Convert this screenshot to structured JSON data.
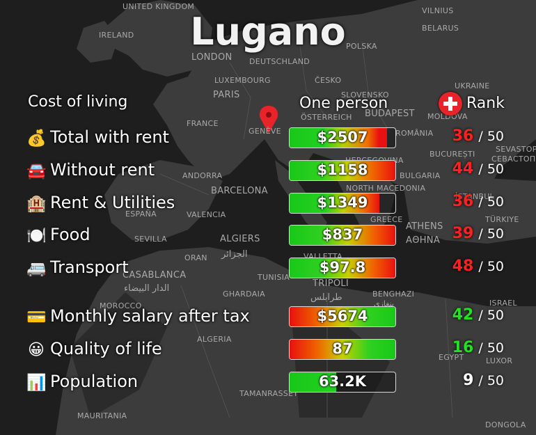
{
  "title": "Lugano",
  "headers": {
    "category": "Cost of living",
    "value": "One person",
    "rank": "Rank"
  },
  "map_labels": [
    "UNITED KINGDOM",
    "IRELAND",
    "LONDON",
    "DEUTSCHLAND",
    "POLSKA",
    "BELARUS",
    "VILNIUS",
    "LUXEMBOURG",
    "ČESKO",
    "PARIS",
    "SLOVENSKO",
    "UKRAINE",
    "ÖSTERREICH",
    "BUDAPEST",
    "MOLDOVA",
    "FRANCE",
    "GENÈVE",
    "ROMÂNIA",
    "BUCUREȘTI",
    "SEVASTOPOL",
    "СЕВАСТОПОЛЬ",
    "ANDORRA",
    "BULGARIA",
    "HERCEGOVINA",
    "BARCELONA",
    "NORTH MACEDONIA",
    "İSTANBUL",
    "ESPAÑA",
    "VALENCIA",
    "GREECE",
    "TÜRKIYE",
    "SEVILLA",
    "ALGIERS",
    "الجزائر",
    "ATHENS",
    "ΑΘΗΝΑ",
    "ORAN",
    "VALLETTA",
    "CASABLANCA",
    "الدار البيضاء",
    "TUNISIA",
    "TRIPOLI",
    "طرابلس",
    "BENGHAZI",
    "بنغازي",
    "MOROCCO",
    "GHARDAIA",
    "ISRAEL",
    "ALGERIA",
    "EGYPT",
    "LUXOR",
    "TAMANRASSET",
    "MAURITANIA",
    "DONGOLA"
  ],
  "rows": [
    {
      "icon": "money-bag-icon",
      "glyph": "💰",
      "label": "Total with rent",
      "value": "$2507",
      "fraction": 0.92,
      "gradient": "linear-gradient(90deg,#18c818 0%,#22d022 35%,#b6d000 55%,#f07000 80%,#e81010 92%)",
      "rank": "36",
      "rank_color": "#ff2020",
      "total": "/ 50"
    },
    {
      "icon": "car-icon",
      "glyph": "🚘",
      "label": "Without rent",
      "value": "$1158",
      "fraction": 1.0,
      "gradient": "linear-gradient(90deg,#18c818 0%,#30d020 30%,#c8d000 55%,#f06000 80%,#e81010 100%)",
      "rank": "44",
      "rank_color": "#ff2020",
      "total": "/ 50"
    },
    {
      "icon": "hotel-icon",
      "glyph": "🏨",
      "label": "Rent & Utilities",
      "value": "$1349",
      "fraction": 0.85,
      "gradient": "linear-gradient(90deg,#18c818 0%,#26d022 40%,#c0d000 60%,#f07000 82%,#e81010 100%)",
      "rank": "36",
      "rank_color": "#ff2020",
      "total": "/ 50"
    },
    {
      "icon": "fork-knife-plate-icon",
      "glyph": "🍽️",
      "label": "Food",
      "value": "$837",
      "fraction": 1.0,
      "gradient": "linear-gradient(90deg,#18c818 0%,#30d020 30%,#c8d000 55%,#f06000 80%,#e81010 100%)",
      "rank": "39",
      "rank_color": "#ff2020",
      "total": "/ 50"
    },
    {
      "icon": "minibus-icon",
      "glyph": "🚐",
      "label": "Transport",
      "value": "$97.8",
      "fraction": 1.0,
      "gradient": "linear-gradient(90deg,#18c818 0%,#30d020 30%,#c8d000 55%,#f06000 80%,#e81010 100%)",
      "rank": "48",
      "rank_color": "#ff2020",
      "total": "/ 50"
    },
    {
      "icon": "credit-card-icon",
      "glyph": "💳",
      "label": "Monthly salary after tax",
      "value": "$5674",
      "fraction": 1.0,
      "gradient": "linear-gradient(90deg,#e81010 0%,#f06000 25%,#c8d000 50%,#30d020 75%,#18c818 100%)",
      "rank": "42",
      "rank_color": "#22e022",
      "total": "/ 50"
    },
    {
      "icon": "smiley-face-icon",
      "glyph": "😀",
      "label": "Quality of life",
      "value": "87",
      "fraction": 1.0,
      "gradient": "linear-gradient(90deg,#e81010 0%,#f06000 25%,#c8d000 50%,#30d020 75%,#18c818 100%)",
      "rank": "16",
      "rank_color": "#22e022",
      "total": "/ 50"
    },
    {
      "icon": "bar-chart-icon",
      "glyph": "📊",
      "label": "Population",
      "value": "63.2K",
      "fraction": 0.44,
      "gradient": "linear-gradient(90deg,#18c818 0%,#22d022 100%)",
      "rank": "9",
      "rank_color": "#ffffff",
      "total": "/ 50"
    }
  ]
}
